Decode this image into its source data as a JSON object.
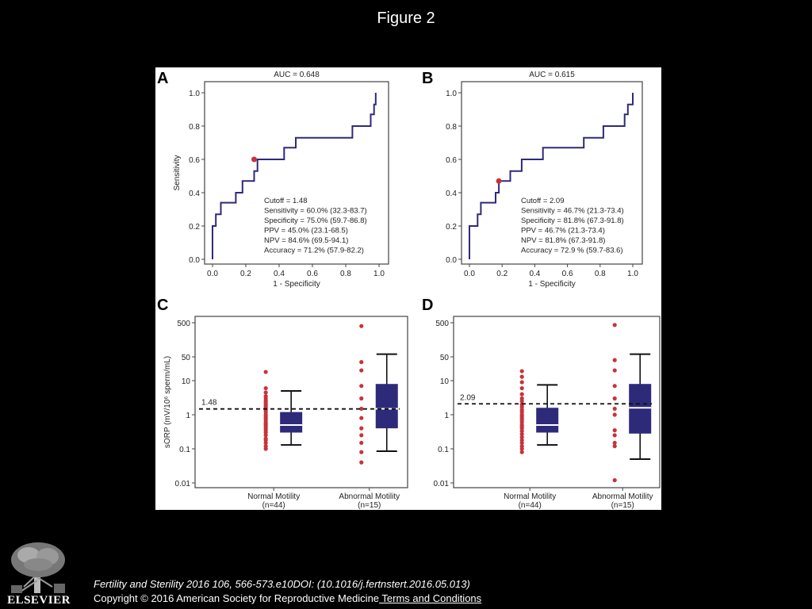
{
  "figure_title": "Figure 2",
  "colors": {
    "line": "#2e2a7a",
    "box": "#2e2a7a",
    "point": "#c8333a",
    "axis": "#444444",
    "background": "#000000",
    "panel": "#ffffff"
  },
  "footer": {
    "logo_text": "ELSEVIER",
    "citation": "Fertility and Sterility 2016 106, 566-573.e10DOI: (10.1016/j.fertnstert.2016.05.013)",
    "copyright": "Copyright © 2016 American Society for Reproductive Medicine",
    "terms_link": " Terms and Conditions"
  },
  "chart_data": [
    {
      "panel": "A",
      "type": "line",
      "title": "AUC = 0.648",
      "xlabel": "1 - Specificity",
      "ylabel": "Sensitivity",
      "xlim": [
        0,
        1
      ],
      "ylim": [
        0,
        1
      ],
      "xticks": [
        "0.0",
        "0.2",
        "0.4",
        "0.6",
        "0.8",
        "1.0"
      ],
      "yticks": [
        "0.0",
        "0.2",
        "0.4",
        "0.6",
        "0.8",
        "1.0"
      ],
      "grid": false,
      "series": [
        {
          "x": [
            0,
            0,
            0.02,
            0.02,
            0.05,
            0.05,
            0.14,
            0.14,
            0.18,
            0.18,
            0.25,
            0.25,
            0.27,
            0.27,
            0.32,
            0.32,
            0.43,
            0.43,
            0.5,
            0.5,
            0.68,
            0.68,
            0.84,
            0.84,
            0.93,
            0.93,
            0.95,
            0.95,
            0.97,
            0.97,
            0.98,
            0.98
          ],
          "y": [
            0,
            0.2,
            0.2,
            0.27,
            0.27,
            0.34,
            0.34,
            0.4,
            0.4,
            0.47,
            0.47,
            0.53,
            0.53,
            0.6,
            0.6,
            0.6,
            0.6,
            0.67,
            0.67,
            0.73,
            0.73,
            0.73,
            0.73,
            0.8,
            0.8,
            0.8,
            0.8,
            0.87,
            0.87,
            0.93,
            0.93,
            1.0
          ]
        }
      ],
      "cutoff_point": {
        "x": 0.25,
        "y": 0.6
      },
      "annotation": [
        "Cutoff = 1.48",
        "Sensitivity = 60.0% (32.3-83.7)",
        "Specificity = 75.0% (59.7-86.8)",
        "PPV = 45.0% (23.1-68.5)",
        "NPV = 84.6% (69.5-94.1)",
        "Accuracy = 71.2% (57.9-82.2)"
      ]
    },
    {
      "panel": "B",
      "type": "line",
      "title": "AUC = 0.615",
      "xlabel": "1 - Specificity",
      "ylabel": "",
      "xlim": [
        0,
        1
      ],
      "ylim": [
        0,
        1
      ],
      "xticks": [
        "0.0",
        "0.2",
        "0.4",
        "0.6",
        "0.8",
        "1.0"
      ],
      "yticks": [
        "0.0",
        "0.2",
        "0.4",
        "0.6",
        "0.8",
        "1.0"
      ],
      "grid": false,
      "series": [
        {
          "x": [
            0,
            0,
            0.05,
            0.05,
            0.07,
            0.07,
            0.16,
            0.16,
            0.18,
            0.18,
            0.25,
            0.25,
            0.32,
            0.32,
            0.45,
            0.45,
            0.7,
            0.7,
            0.82,
            0.82,
            0.95,
            0.95,
            0.97,
            0.97,
            1.0,
            1.0
          ],
          "y": [
            0,
            0.2,
            0.2,
            0.27,
            0.27,
            0.34,
            0.34,
            0.4,
            0.4,
            0.47,
            0.47,
            0.53,
            0.53,
            0.6,
            0.6,
            0.67,
            0.67,
            0.73,
            0.73,
            0.8,
            0.8,
            0.87,
            0.87,
            0.93,
            0.93,
            1.0
          ]
        }
      ],
      "cutoff_point": {
        "x": 0.18,
        "y": 0.47
      },
      "annotation": [
        "Cutoff = 2.09",
        "Sensitivity = 46.7% (21.3-73.4)",
        "Specificity = 81.8% (67.3-91.8)",
        "PPV = 46.7% (21.3-73.4)",
        "NPV = 81.8% (67.3-91.8)",
        "Accuracy = 72.9 % (59.7-83.6)"
      ]
    },
    {
      "panel": "C",
      "type": "scatter",
      "title": "",
      "ylabel": "sORP (mV/10⁶ sperm/mL)",
      "yscale": "log",
      "ylim": [
        0.01,
        500
      ],
      "yticks": [
        "500",
        "50",
        "10",
        "1",
        "0.1",
        "0.01"
      ],
      "categories": [
        "Normal Motility\n(n=44)",
        "Abnormal Motility\n(n=15)"
      ],
      "cutoff": 1.48,
      "cutoff_label": "1.48",
      "boxes": [
        {
          "whisker_low": 0.13,
          "q1": 0.3,
          "median": 0.5,
          "q3": 1.2,
          "whisker_high": 5
        },
        {
          "whisker_low": 0.085,
          "q1": 0.4,
          "median": 1.5,
          "q3": 8,
          "whisker_high": 60
        }
      ],
      "points": [
        [
          0.1,
          0.12,
          0.15,
          0.18,
          0.2,
          0.25,
          0.3,
          0.35,
          0.4,
          0.45,
          0.5,
          0.55,
          0.6,
          0.7,
          0.8,
          0.9,
          1.0,
          1.2,
          1.4,
          1.6,
          1.8,
          2.0,
          2.3,
          2.6,
          3.0,
          3.5,
          4.5,
          6.0,
          18.0
        ],
        [
          0.04,
          0.08,
          0.15,
          0.25,
          0.4,
          0.8,
          1.5,
          3.0,
          7.0,
          20.0,
          35.0,
          400.0
        ]
      ]
    },
    {
      "panel": "D",
      "type": "scatter",
      "title": "",
      "ylabel": "",
      "yscale": "log",
      "ylim": [
        0.01,
        500
      ],
      "yticks": [
        "500",
        "50",
        "10",
        "1",
        "0.1",
        "0.01"
      ],
      "categories": [
        "Normal Motility\n(n=44)",
        "Abnormal Motility\n(n=15)"
      ],
      "cutoff": 2.09,
      "cutoff_label": "2.09",
      "boxes": [
        {
          "whisker_low": 0.13,
          "q1": 0.3,
          "median": 0.5,
          "q3": 1.6,
          "whisker_high": 7.5
        },
        {
          "whisker_low": 0.05,
          "q1": 0.28,
          "median": 1.6,
          "q3": 8,
          "whisker_high": 60
        }
      ],
      "points": [
        [
          0.08,
          0.1,
          0.12,
          0.15,
          0.18,
          0.22,
          0.27,
          0.33,
          0.4,
          0.45,
          0.5,
          0.6,
          0.7,
          0.8,
          0.9,
          1.0,
          1.2,
          1.4,
          1.7,
          2.0,
          2.5,
          3.0,
          4.0,
          6.0,
          9.0,
          13.0,
          19.0
        ],
        [
          0.012,
          0.12,
          0.15,
          0.25,
          0.35,
          1.0,
          1.5,
          3.0,
          7.0,
          20.0,
          40.0,
          430.0
        ]
      ]
    }
  ]
}
